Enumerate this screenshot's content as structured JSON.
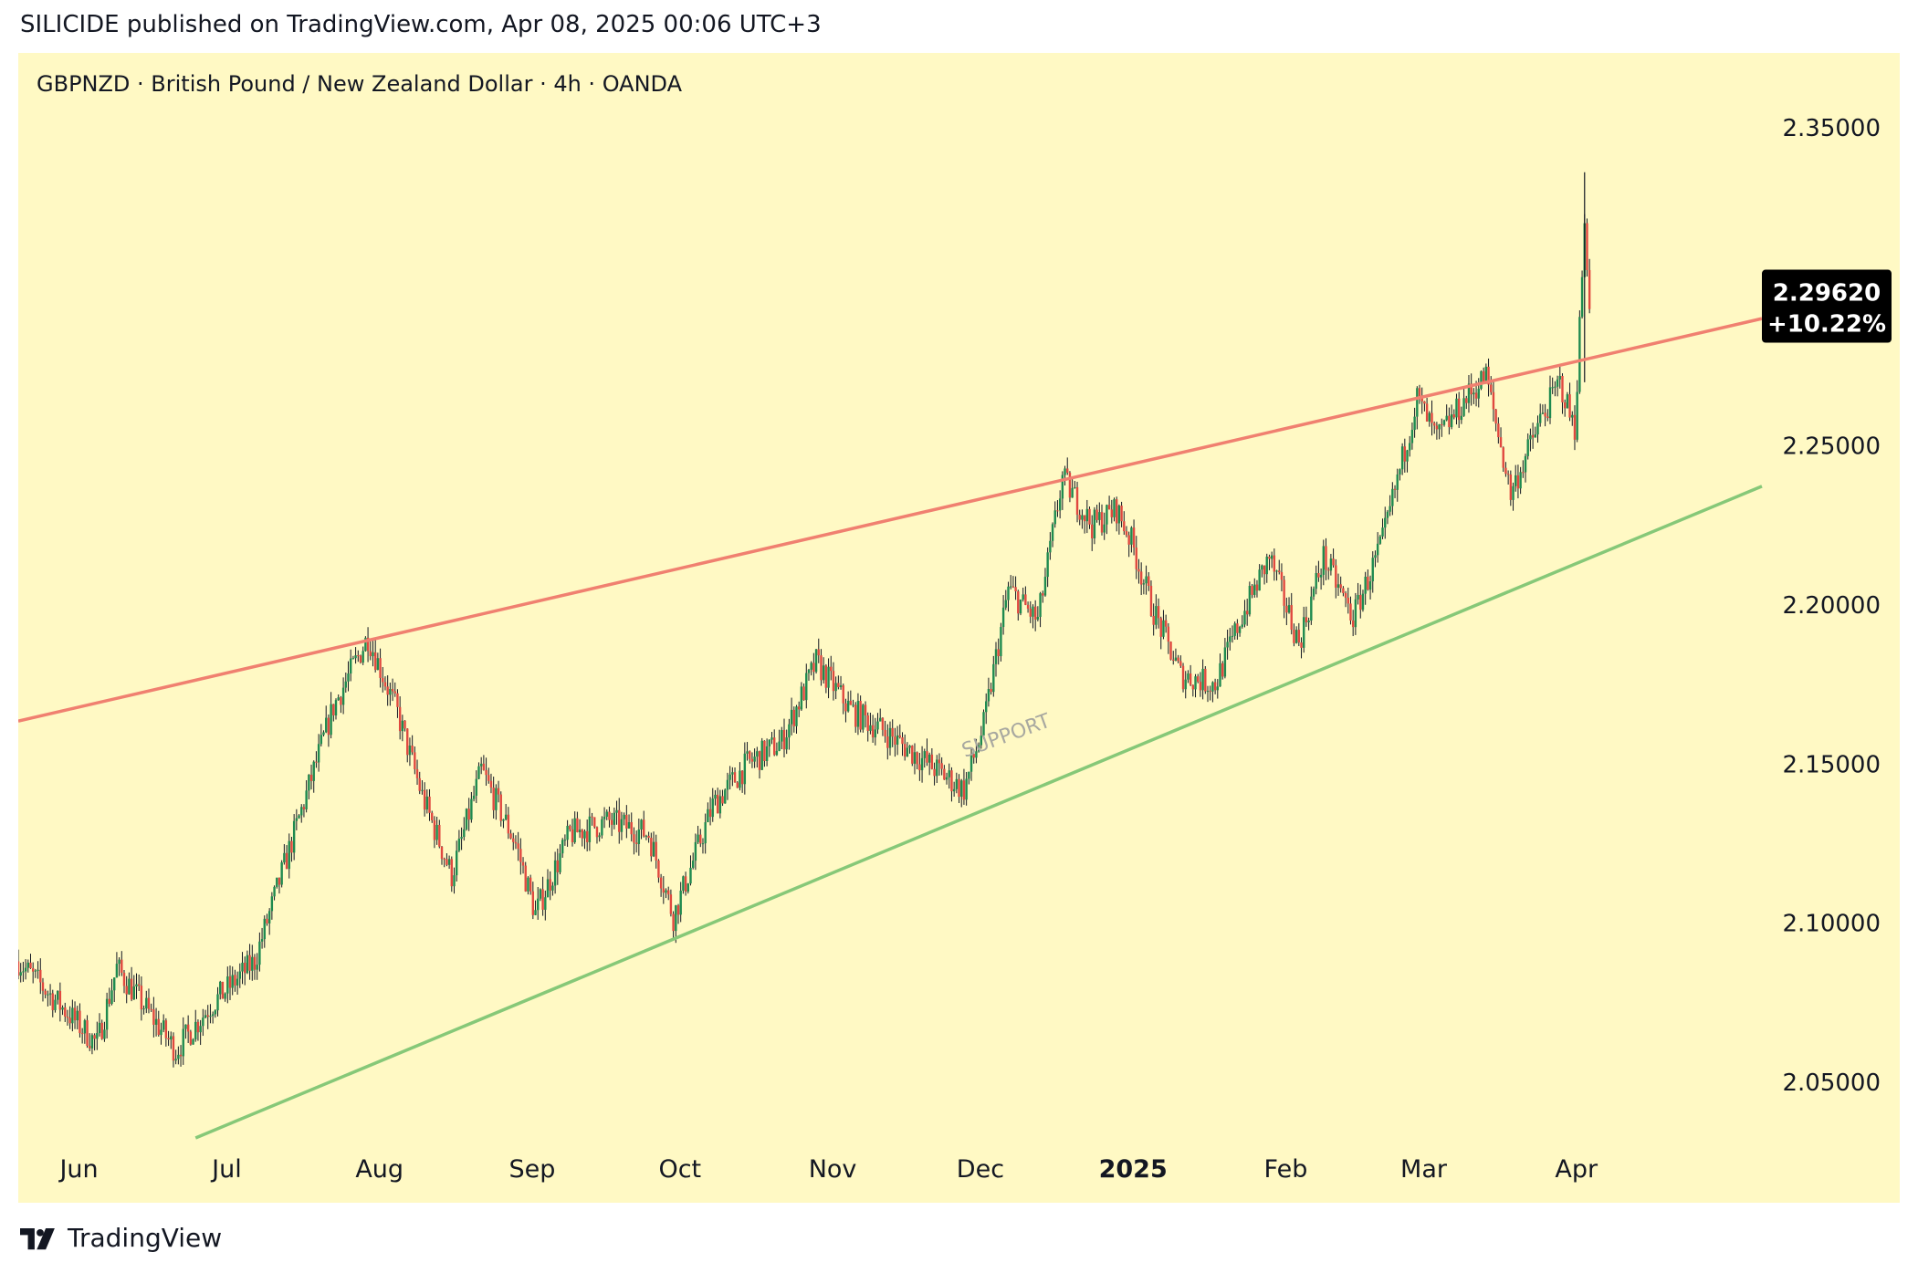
{
  "header": {
    "published_by": "SILICIDE published on TradingView.com, Apr 08, 2025 00:06 UTC+3"
  },
  "footer": {
    "brand": "TradingView",
    "logo_icon": "tradingview-logo-icon"
  },
  "colors": {
    "background": "#fff9c4",
    "resistance_line": "#f08070",
    "support_line": "#86c878",
    "candle_up": "#1e8a4f",
    "candle_down": "#e0483f",
    "price_tag": "#000000"
  },
  "chart_data": {
    "type": "candlestick",
    "title": "GBPNZD · British Pound / New Zealand Dollar · 4h · OANDA",
    "x_ticks": [
      {
        "label": "Jun",
        "date": "2024-06-01",
        "bold": false
      },
      {
        "label": "Jul",
        "date": "2024-07-01",
        "bold": false
      },
      {
        "label": "Aug",
        "date": "2024-08-01",
        "bold": false
      },
      {
        "label": "Sep",
        "date": "2024-09-01",
        "bold": false
      },
      {
        "label": "Oct",
        "date": "2024-10-01",
        "bold": false
      },
      {
        "label": "Nov",
        "date": "2024-11-01",
        "bold": false
      },
      {
        "label": "Dec",
        "date": "2024-12-01",
        "bold": false
      },
      {
        "label": "2025",
        "date": "2025-01-01",
        "bold": true
      },
      {
        "label": "Feb",
        "date": "2025-02-01",
        "bold": false
      },
      {
        "label": "Mar",
        "date": "2025-03-01",
        "bold": false
      },
      {
        "label": "Apr",
        "date": "2025-04-01",
        "bold": false
      }
    ],
    "x_range": [
      "2024-05-23",
      "2025-05-12"
    ],
    "y_ticks": [
      2.05,
      2.1,
      2.15,
      2.2,
      2.25,
      2.35
    ],
    "y_tick_labels": [
      "2.05000",
      "2.10000",
      "2.15000",
      "2.20000",
      "2.25000",
      "2.35000"
    ],
    "y_range": [
      2.0322,
      2.3735
    ],
    "price_path": [
      [
        "2024-05-23",
        2.088
      ],
      [
        "2024-06-08",
        2.062
      ],
      [
        "2024-06-12",
        2.086
      ],
      [
        "2024-06-24",
        2.06
      ],
      [
        "2024-07-01",
        2.074
      ],
      [
        "2024-07-10",
        2.088
      ],
      [
        "2024-07-18",
        2.128
      ],
      [
        "2024-07-26",
        2.168
      ],
      [
        "2024-08-02",
        2.19
      ],
      [
        "2024-08-08",
        2.166
      ],
      [
        "2024-08-13",
        2.14
      ],
      [
        "2024-08-19",
        2.115
      ],
      [
        "2024-08-25",
        2.148
      ],
      [
        "2024-09-01",
        2.125
      ],
      [
        "2024-09-05",
        2.103
      ],
      [
        "2024-09-12",
        2.128
      ],
      [
        "2024-09-20",
        2.132
      ],
      [
        "2024-09-28",
        2.128
      ],
      [
        "2024-10-03",
        2.102
      ],
      [
        "2024-10-11",
        2.137
      ],
      [
        "2024-10-18",
        2.15
      ],
      [
        "2024-10-25",
        2.157
      ],
      [
        "2024-11-01",
        2.182
      ],
      [
        "2024-11-08",
        2.167
      ],
      [
        "2024-11-15",
        2.16
      ],
      [
        "2024-11-22",
        2.152
      ],
      [
        "2024-12-01",
        2.142
      ],
      [
        "2024-12-05",
        2.162
      ],
      [
        "2024-12-10",
        2.205
      ],
      [
        "2024-12-16",
        2.195
      ],
      [
        "2024-12-21",
        2.24
      ],
      [
        "2024-12-27",
        2.225
      ],
      [
        "2025-01-01",
        2.23
      ],
      [
        "2025-01-04",
        2.22
      ],
      [
        "2025-01-08",
        2.2
      ],
      [
        "2025-01-14",
        2.178
      ],
      [
        "2025-01-21",
        2.175
      ],
      [
        "2025-01-26",
        2.195
      ],
      [
        "2025-02-01",
        2.215
      ],
      [
        "2025-02-07",
        2.188
      ],
      [
        "2025-02-12",
        2.215
      ],
      [
        "2025-02-18",
        2.196
      ],
      [
        "2025-02-24",
        2.22
      ],
      [
        "2025-03-03",
        2.265
      ],
      [
        "2025-03-07",
        2.252
      ],
      [
        "2025-03-13",
        2.265
      ],
      [
        "2025-03-17",
        2.272
      ],
      [
        "2025-03-22",
        2.235
      ],
      [
        "2025-03-28",
        2.258
      ],
      [
        "2025-04-01",
        2.27
      ],
      [
        "2025-04-04",
        2.255
      ],
      [
        "2025-04-06",
        2.32
      ],
      [
        "2025-04-07",
        2.2962
      ]
    ],
    "annotations": [
      {
        "type": "trendline",
        "name": "resistance",
        "from": [
          "2024-05-23",
          2.1635
        ],
        "to": [
          "2025-05-12",
          2.29
        ]
      },
      {
        "type": "trendline",
        "name": "support",
        "from": [
          "2024-06-28",
          2.0325
        ],
        "to": [
          "2025-05-12",
          2.2373
        ]
      },
      {
        "type": "text",
        "text": "SUPPORT",
        "date": "2024-12-10",
        "value": 2.157
      }
    ],
    "last_price": {
      "value": 2.2962,
      "label": "2.29620",
      "change": "+10.22%"
    },
    "grid": false,
    "legend": "none"
  }
}
